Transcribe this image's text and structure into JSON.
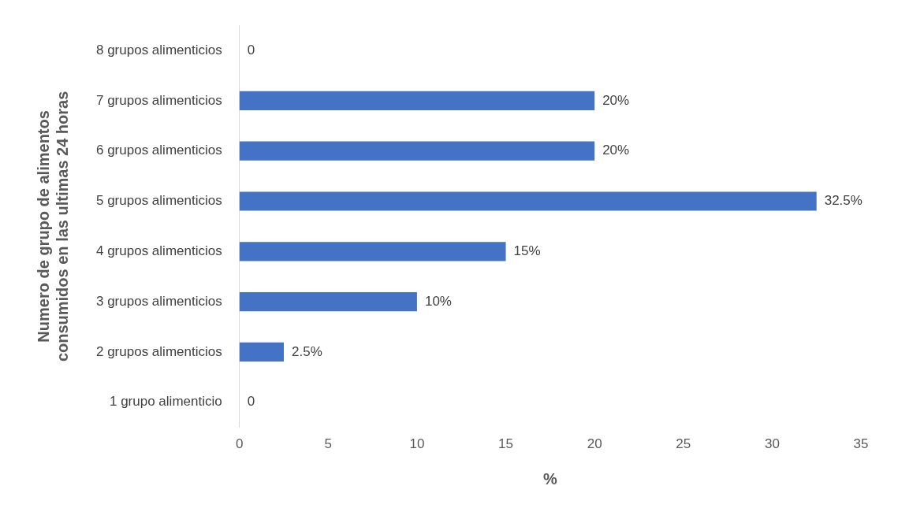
{
  "chart_data": {
    "type": "bar",
    "orientation": "horizontal",
    "xlabel": "%",
    "ylabel": "Numero de grupo de alimentos consumidos en las ultimas 24 horas",
    "categories": [
      "8 grupos alimenticios",
      "7 grupos alimenticios",
      "6 grupos alimenticios",
      "5 grupos alimenticios",
      "4 grupos alimenticios",
      "3 grupos alimenticios",
      "2 grupos alimenticios",
      "1 grupo alimenticio"
    ],
    "values": [
      0,
      20,
      20,
      32.5,
      15,
      10,
      2.5,
      0
    ],
    "value_labels": [
      "0",
      "20%",
      "20%",
      "32.5%",
      "15%",
      "10%",
      "2.5%",
      "0"
    ],
    "color": "#4472c4",
    "xlim": [
      0,
      35
    ],
    "xticks": [
      0,
      5,
      10,
      15,
      20,
      25,
      30,
      35
    ],
    "grid": false,
    "legend": false
  }
}
